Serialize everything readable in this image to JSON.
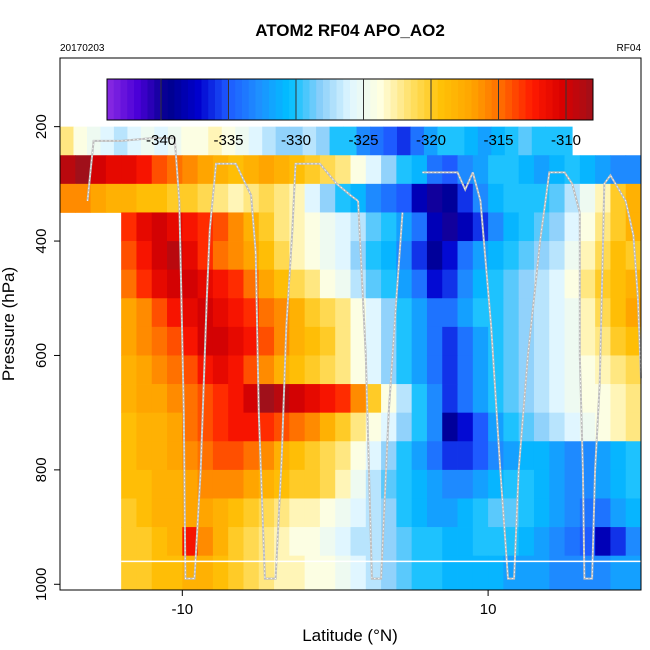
{
  "chart_data": {
    "type": "heatmap",
    "title": "ATOM2 RF04 APO_AO2",
    "corner_left": "20170203",
    "corner_right": "RF04",
    "xlabel": "Latitude (°N)",
    "ylabel": "Pressure (hPa)",
    "xlim": [
      -18,
      20
    ],
    "ylim": [
      1010,
      80
    ],
    "x_ticks": [
      -10,
      10
    ],
    "x_tick_labels": [
      "-10",
      "10"
    ],
    "y_ticks": [
      200,
      400,
      600,
      800,
      1000
    ],
    "y_tick_labels": [
      "200",
      "400",
      "600",
      "800",
      "1000"
    ],
    "colorbar": {
      "range": [
        -344,
        -308
      ],
      "ticks": [
        -340,
        -335,
        -330,
        -325,
        -320,
        -315,
        -310
      ],
      "tick_labels": [
        "-340",
        "-335",
        "-330",
        "-325",
        "-320",
        "-315",
        "-310"
      ],
      "colors": [
        "#8a2be2",
        "#4b00d8",
        "#00008b",
        "#0000cd",
        "#1e5bff",
        "#1e90ff",
        "#00bfff",
        "#87cefa",
        "#e0f6ff",
        "#ffffe0",
        "#ffe066",
        "#ffc107",
        "#ffa500",
        "#ff6a00",
        "#ff1a00",
        "#d90000",
        "#a0101a"
      ]
    },
    "grid_x": [
      -18,
      -17,
      -16,
      -15,
      -14,
      -13,
      -12,
      -11,
      -10,
      -9,
      -8,
      -7,
      -6,
      -5,
      -4,
      -3,
      -2,
      -1,
      0,
      1,
      2,
      3,
      4,
      5,
      6,
      7,
      8,
      9,
      10,
      11,
      12,
      13,
      14,
      15,
      16,
      17,
      18,
      19,
      20
    ],
    "p_levels": [
      225,
      275,
      325,
      375,
      425,
      475,
      525,
      575,
      625,
      675,
      725,
      775,
      825,
      875,
      925,
      975,
      1010
    ],
    "rows": [
      {
        "p_min": 200,
        "p_max": 250,
        "x_min": -18,
        "x_max": 15.5,
        "values": [
          -322,
          -324,
          -325,
          -326,
          -327,
          -326,
          -325,
          -326,
          -325,
          -324,
          -324,
          -323,
          -324,
          -325,
          -326,
          -327,
          -328,
          -328,
          -327,
          -328,
          -330,
          -330,
          -333,
          -334,
          -335,
          -336,
          -334,
          -332,
          -330,
          -330,
          -331,
          -332,
          -331,
          -330,
          -329,
          -330,
          -330,
          -330
        ]
      },
      {
        "p_min": 250,
        "p_max": 300,
        "x_min": -18,
        "x_max": 20,
        "values": [
          -309,
          -308,
          -310,
          -311,
          -311,
          -312,
          -314,
          -315,
          -316,
          -317,
          -318,
          -319,
          -318,
          -317,
          -318,
          -319,
          -320,
          -321,
          -322,
          -324,
          -326,
          -328,
          -330,
          -331,
          -334,
          -335,
          -333,
          -332,
          -330,
          -330,
          -331,
          -332,
          -331,
          -330,
          -331,
          -332,
          -333,
          -333
        ]
      },
      {
        "p_min": 300,
        "p_max": 350,
        "x_min": -18,
        "x_max": 20,
        "values": [
          -316,
          -316,
          -317,
          -318,
          -318,
          -319,
          -319,
          -320,
          -320,
          -321,
          -322,
          -323,
          -322,
          -321,
          -322,
          -323,
          -326,
          -328,
          -330,
          -331,
          -333,
          -334,
          -335,
          -338,
          -340,
          -339,
          -336,
          -333,
          -331,
          -330,
          -330,
          -330,
          -329,
          -327,
          -325,
          -323,
          -320,
          -318
        ]
      },
      {
        "p_min": 350,
        "p_max": 400,
        "x_min": -14,
        "x_max": 20,
        "values": [
          -313,
          -311,
          -310,
          -311,
          -312,
          -313,
          -314,
          -316,
          -318,
          -320,
          -322,
          -323,
          -324,
          -325,
          -326,
          -327,
          -329,
          -330,
          -332,
          -334,
          -338,
          -340,
          -338,
          -336,
          -333,
          -331,
          -330,
          -329,
          -328,
          -326,
          -324,
          -322,
          -320,
          -318
        ]
      },
      {
        "p_min": 400,
        "p_max": 450,
        "x_min": -14,
        "x_max": 20,
        "values": [
          -314,
          -312,
          -310,
          -309,
          -311,
          -313,
          -315,
          -316,
          -317,
          -319,
          -321,
          -323,
          -324,
          -325,
          -326,
          -328,
          -330,
          -331,
          -333,
          -336,
          -339,
          -337,
          -334,
          -332,
          -331,
          -330,
          -329,
          -328,
          -327,
          -325,
          -323,
          -321,
          -319,
          -320
        ]
      },
      {
        "p_min": 450,
        "p_max": 500,
        "x_min": -14,
        "x_max": 20,
        "values": [
          -315,
          -313,
          -311,
          -310,
          -310,
          -311,
          -312,
          -313,
          -315,
          -317,
          -319,
          -321,
          -322,
          -324,
          -325,
          -327,
          -329,
          -330,
          -332,
          -334,
          -337,
          -336,
          -333,
          -331,
          -330,
          -329,
          -328,
          -327,
          -326,
          -324,
          -322,
          -320,
          -319,
          -318
        ]
      },
      {
        "p_min": 500,
        "p_max": 550,
        "x_min": -14,
        "x_max": 20,
        "values": [
          -317,
          -316,
          -314,
          -312,
          -311,
          -310,
          -311,
          -312,
          -313,
          -315,
          -316,
          -318,
          -320,
          -321,
          -322,
          -324,
          -326,
          -328,
          -330,
          -332,
          -334,
          -334,
          -332,
          -330,
          -330,
          -329,
          -328,
          -327,
          -326,
          -325,
          -323,
          -321,
          -319,
          -317
        ]
      },
      {
        "p_min": 550,
        "p_max": 600,
        "x_min": -14,
        "x_max": 20,
        "values": [
          -317,
          -316,
          -315,
          -314,
          -312,
          -310,
          -310,
          -311,
          -312,
          -314,
          -316,
          -318,
          -319,
          -320,
          -322,
          -324,
          -326,
          -328,
          -330,
          -332,
          -334,
          -336,
          -334,
          -332,
          -330,
          -329,
          -328,
          -327,
          -326,
          -325,
          -323,
          -322,
          -320,
          -319
        ]
      },
      {
        "p_min": 600,
        "p_max": 650,
        "x_min": -14,
        "x_max": 20,
        "values": [
          -318,
          -317,
          -316,
          -315,
          -314,
          -312,
          -311,
          -312,
          -314,
          -316,
          -318,
          -319,
          -320,
          -321,
          -322,
          -324,
          -326,
          -328,
          -330,
          -332,
          -334,
          -336,
          -334,
          -332,
          -330,
          -329,
          -328,
          -327,
          -326,
          -325,
          -324,
          -323,
          -322,
          -321
        ]
      },
      {
        "p_min": 650,
        "p_max": 700,
        "x_min": -14,
        "x_max": 20,
        "values": [
          -318,
          -317,
          -317,
          -316,
          -315,
          -314,
          -313,
          -312,
          -310,
          -308,
          -309,
          -310,
          -311,
          -312,
          -313,
          -316,
          -320,
          -324,
          -327,
          -330,
          -333,
          -336,
          -334,
          -332,
          -330,
          -329,
          -328,
          -327,
          -326,
          -325,
          -324,
          -324,
          -323,
          -322
        ]
      },
      {
        "p_min": 700,
        "p_max": 750,
        "x_min": -14,
        "x_max": 20,
        "values": [
          -319,
          -318,
          -318,
          -317,
          -315,
          -314,
          -313,
          -312,
          -312,
          -313,
          -314,
          -315,
          -316,
          -318,
          -320,
          -322,
          -324,
          -326,
          -328,
          -330,
          -333,
          -339,
          -337,
          -335,
          -332,
          -330,
          -329,
          -328,
          -327,
          -326,
          -325,
          -324,
          -323,
          -322
        ]
      },
      {
        "p_min": 750,
        "p_max": 800,
        "x_min": -14,
        "x_max": 20,
        "values": [
          -319,
          -318,
          -318,
          -317,
          -316,
          -315,
          -314,
          -314,
          -315,
          -316,
          -318,
          -319,
          -320,
          -321,
          -322,
          -324,
          -326,
          -328,
          -330,
          -332,
          -334,
          -336,
          -336,
          -335,
          -333,
          -332,
          -331,
          -331,
          -332,
          -333,
          -333,
          -332,
          -331,
          -330
        ]
      },
      {
        "p_min": 800,
        "p_max": 850,
        "x_min": -14,
        "x_max": 20,
        "values": [
          -319,
          -319,
          -318,
          -318,
          -317,
          -316,
          -316,
          -316,
          -317,
          -318,
          -319,
          -320,
          -320,
          -321,
          -323,
          -325,
          -327,
          -329,
          -330,
          -331,
          -332,
          -333,
          -333,
          -332,
          -331,
          -330,
          -330,
          -331,
          -332,
          -333,
          -333,
          -332,
          -331,
          -330
        ]
      },
      {
        "p_min": 850,
        "p_max": 900,
        "x_min": -14,
        "x_max": 20,
        "values": [
          -320,
          -319,
          -318,
          -318,
          -317,
          -317,
          -318,
          -319,
          -320,
          -321,
          -322,
          -323,
          -323,
          -324,
          -325,
          -326,
          -327,
          -328,
          -330,
          -331,
          -332,
          -332,
          -331,
          -330,
          -329,
          -329,
          -330,
          -331,
          -332,
          -333,
          -334,
          -334,
          -332,
          -331
        ]
      },
      {
        "p_min": 900,
        "p_max": 950,
        "x_min": -14,
        "x_max": 20,
        "values": [
          -320,
          -320,
          -319,
          -318,
          -312,
          -316,
          -318,
          -320,
          -321,
          -322,
          -323,
          -324,
          -324,
          -325,
          -326,
          -327,
          -327,
          -328,
          -329,
          -330,
          -330,
          -331,
          -331,
          -330,
          -330,
          -330,
          -331,
          -332,
          -333,
          -334,
          -335,
          -338,
          -336,
          -333
        ]
      },
      {
        "p_min": 950,
        "p_max": 1010,
        "x_min": -14,
        "x_max": 20,
        "values": [
          -320,
          -320,
          -319,
          -319,
          -318,
          -318,
          -319,
          -320,
          -321,
          -322,
          -323,
          -323,
          -324,
          -324,
          -325,
          -326,
          -327,
          -328,
          -329,
          -330,
          -330,
          -331,
          -331,
          -331,
          -331,
          -332,
          -332,
          -332,
          -333,
          -333,
          -333,
          -333,
          -332,
          -332
        ]
      }
    ],
    "profiles": [
      {
        "points": [
          [
            -16.2,
            330
          ],
          [
            -15.8,
            225
          ],
          [
            -14,
            225
          ],
          [
            -12,
            220
          ],
          [
            -10.5,
            220
          ],
          [
            -10.2,
            330
          ],
          [
            -10.1,
            450
          ]
        ]
      },
      {
        "points": [
          [
            -10.1,
            450
          ],
          [
            -9.9,
            700
          ],
          [
            -9.8,
            990
          ],
          [
            -9.2,
            990
          ],
          [
            -8.8,
            800
          ],
          [
            -8.4,
            500
          ],
          [
            -8.2,
            380
          ],
          [
            -7.8,
            265
          ],
          [
            -6.5,
            265
          ],
          [
            -5.5,
            320
          ],
          [
            -5.2,
            420
          ]
        ]
      },
      {
        "points": [
          [
            -5.2,
            420
          ],
          [
            -5,
            700
          ],
          [
            -4.6,
            990
          ],
          [
            -3.9,
            990
          ],
          [
            -3.5,
            780
          ],
          [
            -3.2,
            550
          ],
          [
            -2.8,
            380
          ],
          [
            -2.6,
            265
          ],
          [
            -1,
            265
          ],
          [
            0.1,
            300
          ],
          [
            1,
            320
          ],
          [
            1.5,
            330
          ]
        ]
      },
      {
        "points": [
          [
            1.5,
            330
          ],
          [
            2,
            600
          ],
          [
            2.4,
            990
          ],
          [
            3,
            990
          ],
          [
            3.5,
            700
          ],
          [
            4,
            500
          ],
          [
            4.4,
            350
          ]
        ]
      },
      {
        "points": [
          [
            5.7,
            280
          ],
          [
            8,
            280
          ],
          [
            8.5,
            310
          ],
          [
            9,
            280
          ]
        ]
      },
      {
        "points": [
          [
            9,
            280
          ],
          [
            9.5,
            330
          ],
          [
            10.2,
            550
          ],
          [
            10.8,
            800
          ],
          [
            11.3,
            990
          ],
          [
            11.7,
            990
          ],
          [
            12,
            800
          ],
          [
            12.6,
            600
          ],
          [
            13.4,
            400
          ],
          [
            14,
            280
          ],
          [
            15,
            280
          ],
          [
            15.5,
            300
          ],
          [
            16,
            350
          ]
        ]
      },
      {
        "points": [
          [
            16,
            350
          ],
          [
            16,
            600
          ],
          [
            16.2,
            800
          ],
          [
            16.3,
            990
          ],
          [
            16.8,
            990
          ],
          [
            17,
            800
          ],
          [
            17.3,
            650
          ],
          [
            17.5,
            420
          ],
          [
            17.6,
            300
          ],
          [
            18,
            285
          ],
          [
            19,
            330
          ],
          [
            19.5,
            390
          ],
          [
            19.8,
            500
          ],
          [
            20,
            640
          ]
        ]
      }
    ],
    "surface_line_p": 960
  }
}
